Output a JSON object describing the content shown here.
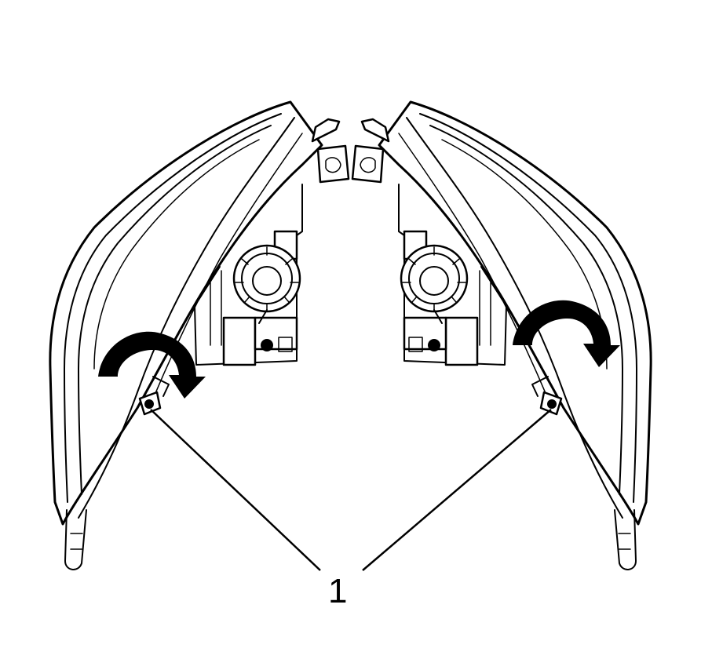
{
  "callouts": [
    {
      "label": "1"
    }
  ],
  "icons": [
    "headlamp-assembly",
    "rotation-arrow-icon",
    "leader-line"
  ]
}
